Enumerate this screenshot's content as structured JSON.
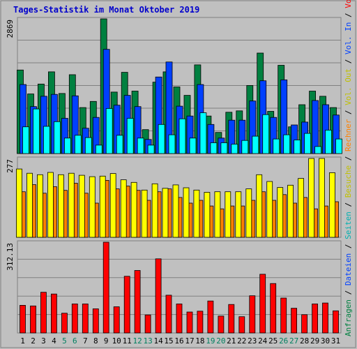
{
  "title": "Tages-Statistik im Monat Oktober 2019",
  "colors": {
    "background": "#c0c0c0",
    "title": "#0000cc",
    "grid": "#808080",
    "anfragen": "#008040",
    "dateien": "#0040ff",
    "seiten": "#00ffff",
    "besuche": "#ffff00",
    "rechner": "#ff8000",
    "volumen": "#ff0000",
    "weekend_label": "#008060",
    "weekday_label": "#000000"
  },
  "right_labels": {
    "top": [
      {
        "text": "Anfragen",
        "color": "#008040"
      },
      {
        "text": " / ",
        "color": "#000000"
      },
      {
        "text": "Dateien",
        "color": "#0040ff"
      },
      {
        "text": " / ",
        "color": "#000000"
      },
      {
        "text": "Seiten",
        "color": "#00b0b0"
      },
      {
        "text": " / ",
        "color": "#000000"
      },
      {
        "text": "Besuche",
        "color": "#c0c000"
      },
      {
        "text": " / ",
        "color": "#000000"
      },
      {
        "text": "Rechner",
        "color": "#ff8000"
      },
      {
        "text": " / ",
        "color": "#000000"
      },
      {
        "text": "Vol. Out",
        "color": "#c0c000"
      },
      {
        "text": " / ",
        "color": "#000000"
      },
      {
        "text": "Vol. In",
        "color": "#0040ff"
      },
      {
        "text": " / ",
        "color": "#000000"
      },
      {
        "text": "Volumen",
        "color": "#ff0000"
      }
    ]
  },
  "chart_data": [
    {
      "type": "bar",
      "name": "hits",
      "ymax_label": "2869",
      "ylim": [
        0,
        2869
      ],
      "categories": [
        "1",
        "2",
        "3",
        "4",
        "5",
        "6",
        "7",
        "8",
        "9",
        "10",
        "11",
        "12",
        "13",
        "14",
        "15",
        "16",
        "17",
        "18",
        "19",
        "20",
        "21",
        "22",
        "23",
        "24",
        "25",
        "26",
        "27",
        "28",
        "29",
        "30",
        "31"
      ],
      "weekend": [
        5,
        6,
        12,
        13,
        19,
        20,
        26,
        27
      ],
      "series": [
        {
          "name": "Anfragen",
          "values": [
            1780,
            1270,
            1480,
            1740,
            1280,
            1680,
            980,
            1110,
            2869,
            1310,
            1730,
            1330,
            510,
            1520,
            1740,
            1420,
            1240,
            1890,
            800,
            450,
            880,
            910,
            1450,
            2140,
            900,
            1880,
            570,
            1040,
            1330,
            1220,
            980
          ]
        },
        {
          "name": "Dateien",
          "values": [
            1470,
            1000,
            1220,
            1260,
            750,
            1230,
            540,
            770,
            2220,
            1030,
            1240,
            1000,
            300,
            1630,
            1950,
            1010,
            800,
            1470,
            620,
            330,
            710,
            710,
            1120,
            1550,
            770,
            1570,
            610,
            670,
            1130,
            1040,
            820
          ]
        },
        {
          "name": "Seiten",
          "values": [
            570,
            950,
            580,
            680,
            330,
            390,
            340,
            180,
            960,
            390,
            750,
            330,
            180,
            620,
            400,
            740,
            330,
            870,
            230,
            230,
            200,
            280,
            370,
            830,
            310,
            400,
            290,
            430,
            150,
            500,
            310
          ]
        }
      ]
    },
    {
      "type": "bar",
      "name": "visits",
      "ymax_label": "277",
      "ylim": [
        0,
        277
      ],
      "series": [
        {
          "name": "Besuche",
          "values": [
            160,
            185,
            155,
            178,
            165,
            190,
            155,
            120,
            200,
            170,
            180,
            165,
            130,
            160,
            170,
            140,
            120,
            130,
            110,
            100,
            110,
            110,
            130,
            160,
            130,
            150,
            120,
            140,
            100,
            110,
            125
          ]
        },
        {
          "name": "Rechner",
          "values": [
            240,
            225,
            220,
            228,
            220,
            225,
            218,
            213,
            215,
            224,
            202,
            193,
            166,
            188,
            172,
            184,
            174,
            166,
            158,
            160,
            160,
            160,
            170,
            220,
            196,
            175,
            183,
            207,
            277,
            277,
            227
          ]
        }
      ]
    },
    {
      "type": "bar",
      "name": "volume",
      "ymax_label": "312.13",
      "ylim": [
        0,
        312.13
      ],
      "series": [
        {
          "name": "Volumen",
          "values": [
            95,
            93,
            140,
            134,
            68,
            100,
            100,
            83,
            312.13,
            90,
            195,
            215,
            62,
            255,
            130,
            100,
            72,
            75,
            110,
            58,
            98,
            56,
            128,
            202,
            170,
            120,
            85,
            63,
            100,
            103,
            76
          ]
        }
      ]
    }
  ]
}
